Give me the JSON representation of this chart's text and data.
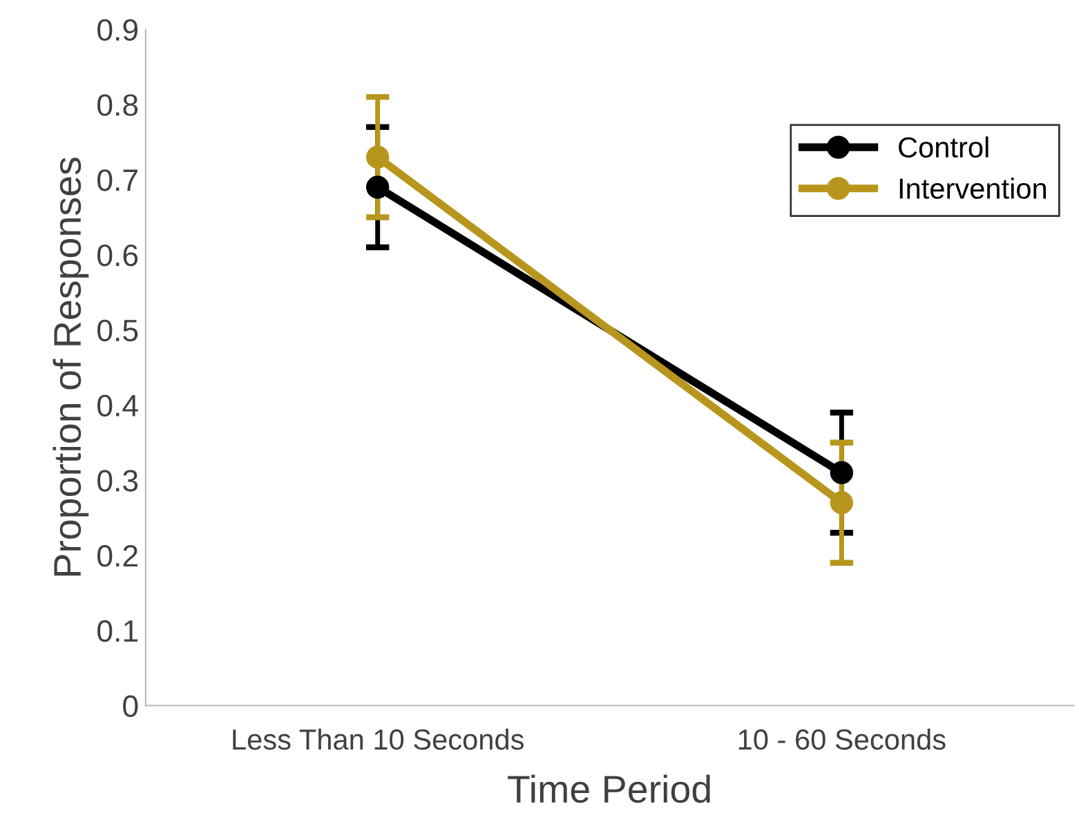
{
  "chart_data": {
    "type": "line",
    "xlabel": "Time Period",
    "ylabel": "Proportion of Responses",
    "categories": [
      "Less Than 10 Seconds",
      "10 - 60 Seconds"
    ],
    "series": [
      {
        "name": "Control",
        "color": "#000000",
        "values": [
          0.69,
          0.31
        ],
        "errors": [
          0.08,
          0.08
        ]
      },
      {
        "name": "Intervention",
        "color": "#b8961e",
        "values": [
          0.73,
          0.27
        ],
        "errors": [
          0.08,
          0.08
        ]
      }
    ],
    "ylim": [
      0,
      0.9
    ],
    "yticks": [
      0,
      0.1,
      0.2,
      0.3,
      0.4,
      0.5,
      0.6,
      0.7,
      0.8,
      0.9
    ],
    "grid": false,
    "legend": "top right",
    "marker": "circle",
    "line_style": "solid"
  }
}
